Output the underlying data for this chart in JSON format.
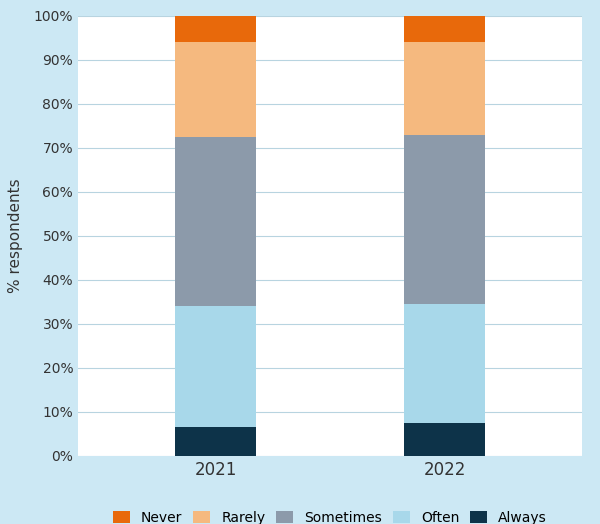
{
  "years": [
    "2021",
    "2022"
  ],
  "categories": [
    "Always",
    "Often",
    "Sometimes",
    "Rarely",
    "Never"
  ],
  "values": {
    "2021": [
      6.5,
      27.5,
      38.5,
      21.5,
      6.0
    ],
    "2022": [
      7.5,
      27.0,
      38.5,
      21.0,
      6.0
    ]
  },
  "colors": {
    "Always": "#0d3349",
    "Often": "#a8d8ea",
    "Sometimes": "#8c9aaa",
    "Rarely": "#f5b97f",
    "Never": "#e8690b"
  },
  "legend_order": [
    "Never",
    "Rarely",
    "Sometimes",
    "Often",
    "Always"
  ],
  "ylabel": "% respondents",
  "yticks": [
    0,
    10,
    20,
    30,
    40,
    50,
    60,
    70,
    80,
    90,
    100
  ],
  "ytick_labels": [
    "0%",
    "10%",
    "20%",
    "30%",
    "40%",
    "50%",
    "60%",
    "70%",
    "80%",
    "90%",
    "100%"
  ],
  "background_color": "#cce8f4",
  "plot_background": "#ffffff",
  "bar_width": 0.35,
  "ylim": [
    0,
    100
  ]
}
